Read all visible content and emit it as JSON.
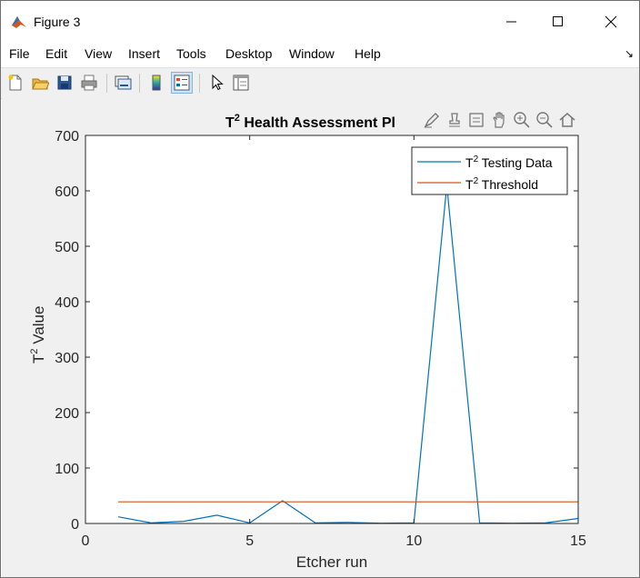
{
  "window": {
    "title": "Figure 3"
  },
  "menu": [
    "File",
    "Edit",
    "View",
    "Insert",
    "Tools",
    "Desktop",
    "Window",
    "Help"
  ],
  "toolbar": [
    "new-figure",
    "open-file",
    "save",
    "print",
    "link-plot",
    "insert-colorbar",
    "insert-legend",
    "edit-plot",
    "property-inspector"
  ],
  "axes_toolbar": [
    "brush",
    "data-cursor",
    "datatip",
    "pan",
    "zoom-in",
    "zoom-out",
    "restore-view"
  ],
  "chart_data": {
    "type": "line",
    "title": {
      "prefix": "T",
      "sup": "2",
      "rest": " Health Assessment Pl"
    },
    "xlabel": "Etcher run",
    "ylabel": {
      "prefix": "T",
      "sup": "2",
      "rest": " Value"
    },
    "xlim": [
      0,
      15
    ],
    "ylim": [
      0,
      700
    ],
    "xticks": [
      0,
      5,
      10,
      15
    ],
    "yticks": [
      0,
      100,
      200,
      300,
      400,
      500,
      600,
      700
    ],
    "legend_position": "top-right",
    "series": [
      {
        "name": {
          "prefix": "T",
          "sup": "2",
          "rest": " Testing Data"
        },
        "color": "#0072bd",
        "x": [
          1,
          2,
          3,
          4,
          5,
          6,
          7,
          8,
          9,
          10,
          11,
          12,
          13,
          14,
          15
        ],
        "y": [
          12,
          1,
          4,
          15,
          1,
          41,
          1,
          2,
          0.5,
          1,
          610,
          1,
          0.5,
          1,
          9
        ]
      },
      {
        "name": {
          "prefix": "T",
          "sup": "2",
          "rest": " Threshold"
        },
        "color": "#d95319",
        "x": [
          1,
          15
        ],
        "y": [
          39,
          39
        ]
      }
    ]
  }
}
